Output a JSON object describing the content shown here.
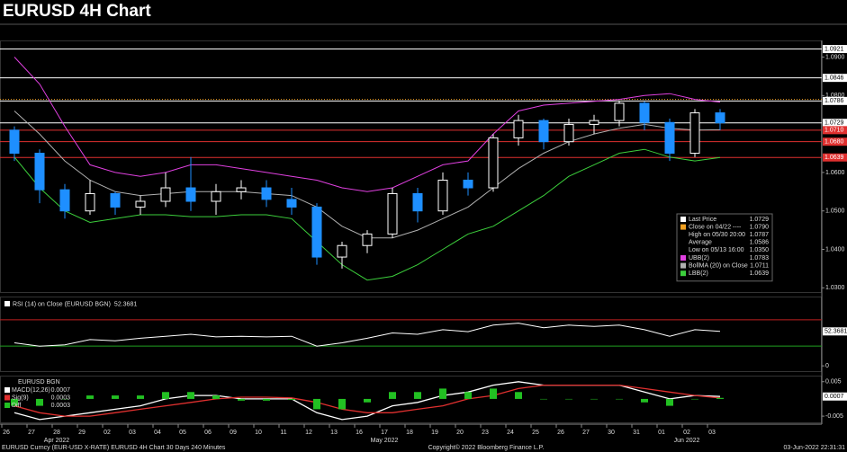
{
  "chart_data": [
    {
      "type": "candlestick",
      "title": "EURUSD 4H Chart",
      "categories": [
        "26",
        "27",
        "28",
        "29",
        "02",
        "03",
        "04",
        "05",
        "06",
        "09",
        "10",
        "11",
        "12",
        "13",
        "16",
        "17",
        "18",
        "19",
        "20",
        "23",
        "24",
        "25",
        "26",
        "27",
        "30",
        "31",
        "01",
        "02",
        "03"
      ],
      "month_labels": [
        null,
        null,
        "Apr 2022",
        null,
        null,
        null,
        null,
        null,
        null,
        null,
        null,
        null,
        null,
        null,
        null,
        "May 2022",
        null,
        null,
        null,
        null,
        null,
        null,
        null,
        null,
        null,
        null,
        null,
        "Jun 2022",
        null
      ],
      "open": [
        1.071,
        1.065,
        1.0555,
        1.05,
        1.0545,
        1.051,
        1.0525,
        1.056,
        1.0525,
        1.055,
        1.056,
        1.053,
        1.051,
        1.038,
        1.041,
        1.044,
        1.0545,
        1.05,
        1.058,
        1.056,
        1.069,
        1.0735,
        1.068,
        1.0725,
        1.0735,
        1.078,
        1.073,
        1.065,
        1.0755
      ],
      "high": [
        1.072,
        1.066,
        1.057,
        1.058,
        1.055,
        1.054,
        1.06,
        1.064,
        1.057,
        1.058,
        1.058,
        1.056,
        1.052,
        1.042,
        1.045,
        1.056,
        1.056,
        1.06,
        1.06,
        1.07,
        1.075,
        1.074,
        1.074,
        1.075,
        1.0787,
        1.0785,
        1.074,
        1.0765,
        1.0765
      ],
      "low": [
        1.063,
        1.052,
        1.048,
        1.049,
        1.049,
        1.049,
        1.051,
        1.05,
        1.049,
        1.053,
        1.051,
        1.049,
        1.036,
        1.035,
        1.039,
        1.043,
        1.047,
        1.049,
        1.054,
        1.055,
        1.067,
        1.066,
        1.067,
        1.07,
        1.072,
        1.071,
        1.063,
        1.064,
        1.071
      ],
      "close": [
        1.065,
        1.0555,
        1.05,
        1.0545,
        1.051,
        1.0525,
        1.056,
        1.0525,
        1.055,
        1.056,
        1.053,
        1.051,
        1.038,
        1.041,
        1.044,
        1.0545,
        1.05,
        1.058,
        1.056,
        1.069,
        1.0735,
        1.068,
        1.0725,
        1.0735,
        1.078,
        1.073,
        1.065,
        1.0755,
        1.0729
      ],
      "up_color": "#ffffff",
      "down_color": "#1e8fff",
      "series": [
        {
          "name": "UBB(2)",
          "color": "#e040e0",
          "legend_value": {
            "value": 1.0783,
            "label": "1.0783"
          },
          "values": [
            1.09,
            1.083,
            1.072,
            1.062,
            1.06,
            1.059,
            1.06,
            1.062,
            1.062,
            1.061,
            1.06,
            1.059,
            1.058,
            1.056,
            1.055,
            1.056,
            1.059,
            1.062,
            1.063,
            1.07,
            1.076,
            1.0775,
            1.078,
            1.0785,
            1.079,
            1.08,
            1.0805,
            1.079,
            1.0783
          ]
        },
        {
          "name": "BollMA (20) on Close",
          "color": "#b0b0b0",
          "legend_value": {
            "value": 1.0711,
            "label": "1.0711"
          },
          "values": [
            1.076,
            1.07,
            1.063,
            1.058,
            1.055,
            1.054,
            1.0545,
            1.055,
            1.055,
            1.055,
            1.0545,
            1.054,
            1.051,
            1.046,
            1.043,
            1.043,
            1.045,
            1.048,
            1.051,
            1.056,
            1.061,
            1.065,
            1.068,
            1.07,
            1.0715,
            1.0725,
            1.0715,
            1.071,
            1.0711
          ]
        },
        {
          "name": "LBB(2)",
          "color": "#3ccf3c",
          "legend_value": {
            "value": 1.0639,
            "label": "1.0639"
          },
          "values": [
            1.064,
            1.056,
            1.05,
            1.047,
            1.048,
            1.049,
            1.049,
            1.0485,
            1.0485,
            1.049,
            1.049,
            1.048,
            1.042,
            1.036,
            1.032,
            1.033,
            1.036,
            1.04,
            1.044,
            1.046,
            1.05,
            1.054,
            1.059,
            1.062,
            1.065,
            1.066,
            1.064,
            1.063,
            1.0639
          ]
        }
      ],
      "legend_extra": [
        {
          "label": "Last Price",
          "color": "#ffffff",
          "value": {
            "value": 1.0729,
            "label": "1.0729"
          }
        },
        {
          "label": "Close on 04/22 ----",
          "color": "#f0a020",
          "value": {
            "value": 1.079,
            "label": "1.0790"
          },
          "style": "dotted"
        },
        {
          "label": "High on 05/30 20:00",
          "color": "#000000",
          "value": {
            "value": 1.0787,
            "label": "1.0787"
          }
        },
        {
          "label": "Average",
          "color": "#000000",
          "value": {
            "value": 1.0586,
            "label": "1.0586"
          }
        },
        {
          "label": "Low on 05/13 16:00",
          "color": "#000000",
          "value": {
            "value": 1.035,
            "label": "1.0350"
          }
        }
      ],
      "levels": [
        {
          "value": 1.0921,
          "label": "1.0921",
          "color": "#ffffff"
        },
        {
          "value": 1.0846,
          "label": "1.0846",
          "color": "#ffffff"
        },
        {
          "value": 1.0786,
          "label": "1.0786",
          "color": "#ffffff"
        },
        {
          "value": 1.0729,
          "label": "1.0729",
          "color": "#ffffff"
        },
        {
          "value": 1.071,
          "label": "1.0710",
          "color": "#e0302f"
        },
        {
          "value": 1.068,
          "label": "1.0680",
          "color": "#e0302f"
        },
        {
          "value": 1.0639,
          "label": "1.0639",
          "color": "#e0302f"
        }
      ],
      "ylim": [
        1.0289,
        1.0941
      ],
      "yticks": [
        {
          "value": 1.03,
          "label": "1.0300"
        },
        {
          "value": 1.04,
          "label": "1.0400"
        },
        {
          "value": 1.05,
          "label": "1.0500"
        },
        {
          "value": 1.06,
          "label": "1.0600"
        },
        {
          "value": 1.08,
          "label": "1.0800"
        },
        {
          "value": 1.09,
          "label": "1.0900"
        }
      ]
    },
    {
      "type": "line",
      "title": "RSI (14) on Close (EURUSD BGN)",
      "color": "#ffffff",
      "last_value": {
        "value": 52.3681,
        "label": "52.3681"
      },
      "values": [
        35,
        30,
        32,
        40,
        38,
        42,
        45,
        48,
        44,
        45,
        44,
        45,
        30,
        35,
        42,
        50,
        48,
        55,
        52,
        62,
        65,
        58,
        62,
        60,
        62,
        55,
        45,
        55,
        52.3681
      ],
      "levels": [
        {
          "value": 70,
          "color": "#c02020"
        },
        {
          "value": 30,
          "color": "#20a020"
        }
      ],
      "ylim": [
        -8,
        104
      ],
      "yticks": [
        0
      ]
    },
    {
      "type": "macd",
      "header": "EURUSD BGN",
      "last_value": {
        "value": 0.0007,
        "label": "0.0007"
      },
      "series": [
        {
          "name": "MACD(12,26)",
          "color": "#ffffff",
          "legend_value": {
            "value": 0.0007,
            "label": "0.0007"
          },
          "values": [
            -0.004,
            -0.006,
            -0.005,
            -0.004,
            -0.003,
            -0.002,
            0,
            0.001,
            0.001,
            0,
            0,
            0,
            -0.004,
            -0.006,
            -0.005,
            -0.002,
            -0.001,
            0.001,
            0.002,
            0.004,
            0.005,
            0.004,
            0.004,
            0.004,
            0.004,
            0.002,
            0,
            0.001,
            0.0007
          ]
        },
        {
          "name": "Sig(9)",
          "color": "#e0302f",
          "legend_value": {
            "value": 0.0003,
            "label": "0.0003"
          },
          "values": [
            -0.002,
            -0.004,
            -0.005,
            -0.005,
            -0.004,
            -0.003,
            -0.002,
            -0.001,
            0,
            0.0005,
            0.0005,
            0.0003,
            -0.001,
            -0.003,
            -0.004,
            -0.004,
            -0.003,
            -0.002,
            0,
            0.001,
            0.003,
            0.004,
            0.004,
            0.004,
            0.004,
            0.003,
            0.002,
            0.001,
            0.0003
          ]
        },
        {
          "name": "Diff",
          "color": "#22c022",
          "legend_value": {
            "value": 0.0003,
            "label": "0.0003"
          },
          "style": "bars",
          "values": [
            -0.002,
            -0.002,
            0,
            0.001,
            0.001,
            0.001,
            0.002,
            0.002,
            0.001,
            -0.0005,
            -0.0005,
            -0.0003,
            -0.003,
            -0.003,
            -0.001,
            0.002,
            0.002,
            0.003,
            0.002,
            0.003,
            0.002,
            0,
            0,
            0,
            0,
            -0.001,
            -0.002,
            0,
            0.0003
          ]
        }
      ],
      "ylim": [
        -0.0068,
        0.0065
      ],
      "yticks": [
        0.005,
        -0.005
      ]
    }
  ],
  "footer": {
    "left": "EURUSD Curncy (EUR-USD X-RATE) EURUSD 4H Chart 30 Days 240 Minutes",
    "center": "Copyright© 2022 Bloomberg Finance L.P.",
    "right": "03-Jun-2022 22:31:31"
  }
}
